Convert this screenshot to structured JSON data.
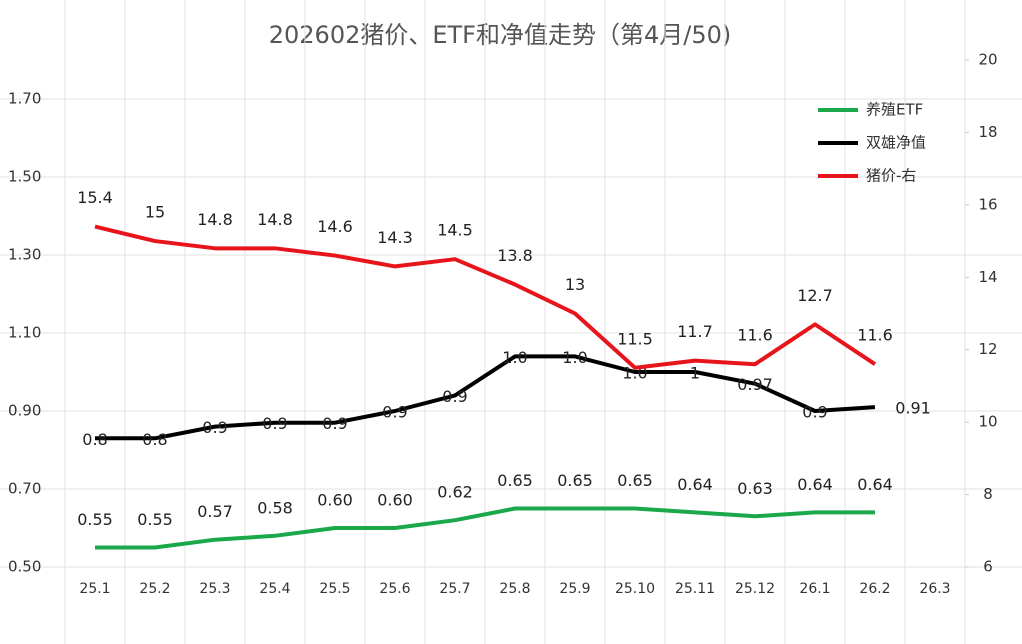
{
  "chart_data": {
    "type": "line",
    "title": "202602猪价、ETF和净值走势（第4月/50)",
    "categories": [
      "25.1",
      "25.2",
      "25.3",
      "25.4",
      "25.5",
      "25.6",
      "25.7",
      "25.8",
      "25.9",
      "25.10",
      "25.11",
      "25.12",
      "26.1",
      "26.2",
      "26.3"
    ],
    "series": [
      {
        "name": "养殖ETF",
        "color": "#1aa84a",
        "axis": "y",
        "values": [
          0.55,
          0.55,
          0.57,
          0.58,
          0.6,
          0.6,
          0.62,
          0.65,
          0.65,
          0.65,
          0.64,
          0.63,
          0.64,
          0.64,
          null
        ],
        "value_labels": [
          "0.55",
          "0.55",
          "0.57",
          "0.58",
          "0.60",
          "0.60",
          "0.62",
          "0.65",
          "0.65",
          "0.65",
          "0.64",
          "0.63",
          "0.64",
          "0.64",
          null
        ]
      },
      {
        "name": "双雄净值",
        "color": "#000000",
        "axis": "y",
        "values": [
          0.83,
          0.83,
          0.86,
          0.87,
          0.87,
          0.9,
          0.94,
          1.04,
          1.04,
          1.0,
          1.0,
          0.97,
          0.9,
          0.91,
          null
        ],
        "value_labels": [
          "0.8",
          "0.8",
          "0.9",
          "0.9",
          "0.9",
          "0.9",
          "0.9",
          "1.0",
          "1.0",
          "1.0",
          "1",
          "0.97",
          "0.9",
          "0.91",
          null
        ]
      },
      {
        "name": "猪价-右",
        "color": "#e8141b",
        "axis": "y2",
        "values": [
          15.4,
          15,
          14.8,
          14.8,
          14.6,
          14.3,
          14.5,
          13.8,
          13,
          11.5,
          11.7,
          11.6,
          12.7,
          11.6,
          null
        ]
      }
    ],
    "ylim": [
      0.5,
      1.8
    ],
    "yticks": [
      {
        "value": 0.5,
        "label": "0.50"
      },
      {
        "value": 0.7,
        "label": "0.70"
      },
      {
        "value": 0.9,
        "label": "0.90"
      },
      {
        "value": 1.1,
        "label": "1.10"
      },
      {
        "value": 1.3,
        "label": "1.30"
      },
      {
        "value": 1.5,
        "label": "1.50"
      },
      {
        "value": 1.7,
        "label": "1.70"
      }
    ],
    "y2lim": [
      6,
      20
    ],
    "y2ticks": [
      6,
      8,
      10,
      12,
      14,
      16,
      18,
      20
    ],
    "grid": true,
    "legend": "upper-right"
  }
}
